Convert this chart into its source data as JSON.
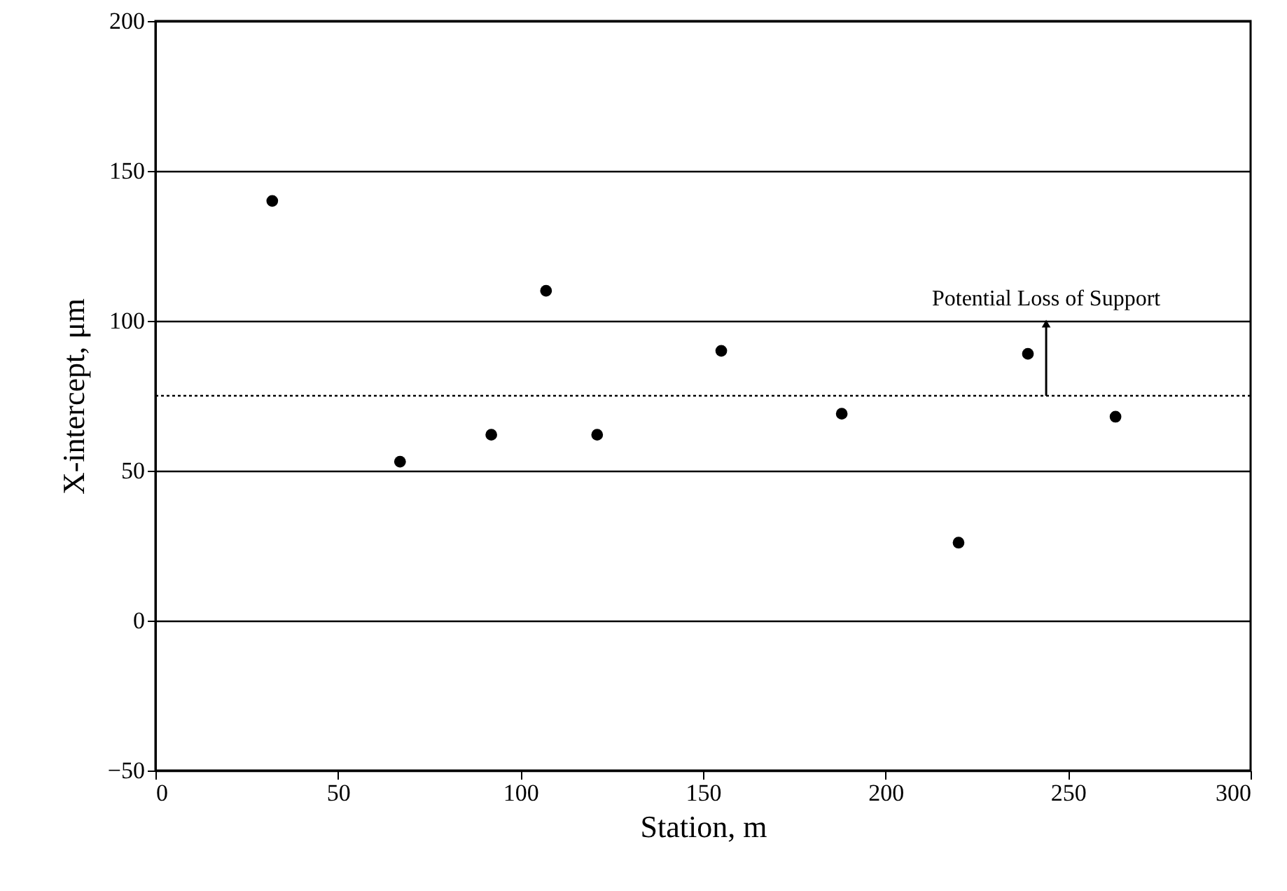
{
  "chart_data": {
    "type": "scatter",
    "xlabel": "Station, m",
    "ylabel": "X-intercept, μm",
    "x": [
      32,
      67,
      92,
      107,
      121,
      155,
      188,
      220,
      239,
      263
    ],
    "series": [
      {
        "color": "#000000",
        "values": [
          140,
          53,
          62,
          110,
          62,
          90,
          69,
          26,
          89,
          68
        ]
      }
    ],
    "xlim": [
      0,
      300
    ],
    "xticks": [
      0,
      50,
      100,
      150,
      200,
      250,
      300
    ],
    "ylim": [
      -50,
      200
    ],
    "yticks": [
      -50,
      0,
      50,
      100,
      150,
      200
    ],
    "grid": "y",
    "marker": "circle",
    "ref_lines": [
      {
        "axis": "y",
        "value": 75,
        "line_style": "dotted",
        "color": "#000000"
      }
    ],
    "annotations": [
      {
        "text": "Potential Loss of Support",
        "x": 244,
        "y": 100
      }
    ]
  }
}
